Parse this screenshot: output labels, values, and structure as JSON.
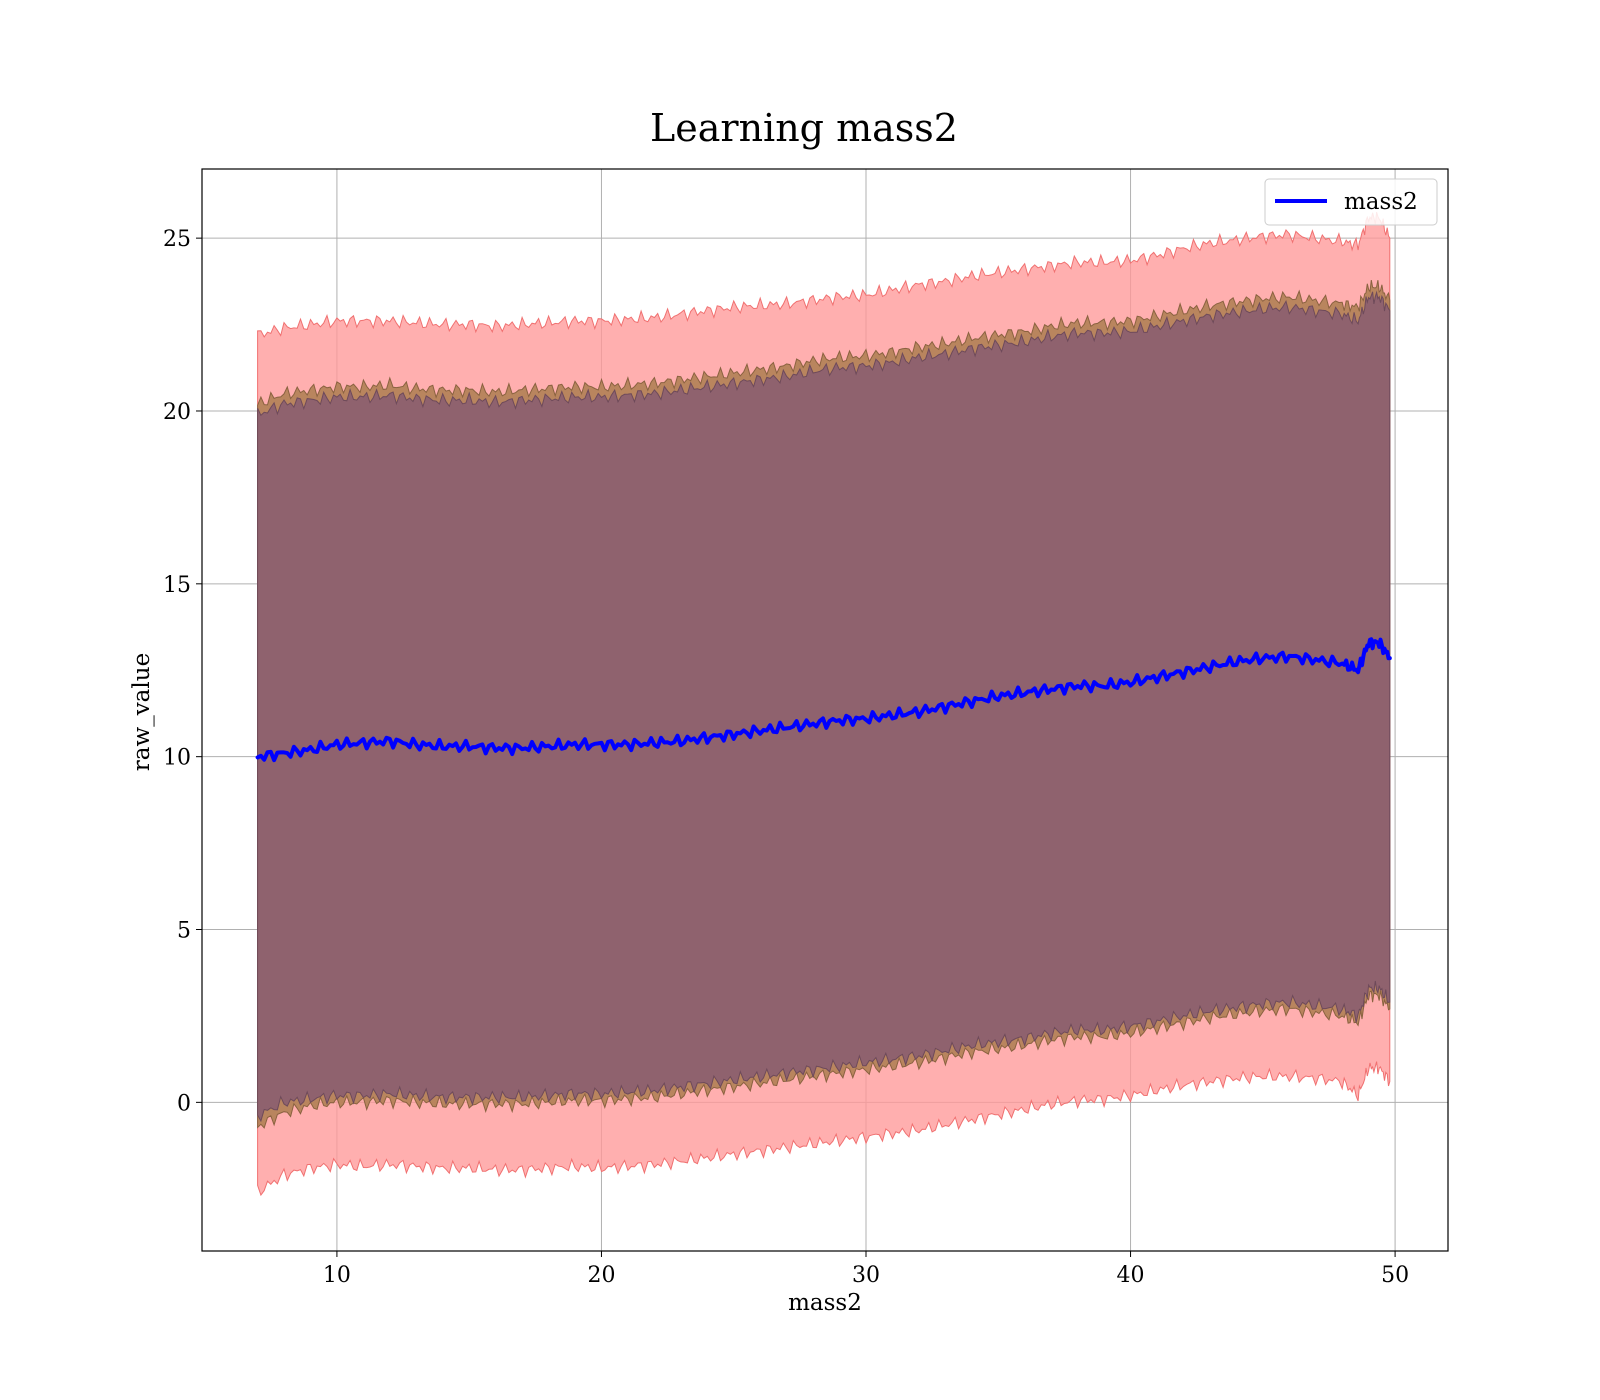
{
  "chart_data": {
    "type": "area",
    "title": "Learning mass2",
    "xlabel": "mass2",
    "ylabel": "raw_value",
    "xlim": [
      4.9,
      52.0
    ],
    "ylim": [
      -4.3,
      27.0
    ],
    "x_ticks": [
      10,
      20,
      30,
      40,
      50
    ],
    "y_ticks": [
      0,
      5,
      10,
      15,
      20,
      25
    ],
    "grid": true,
    "legend_position": "top-right",
    "colors": {
      "line": "#0000ff",
      "outer_band": "#ff9999",
      "middle_band": "#b5835a",
      "inner_band": "#8b5f70"
    },
    "series": [
      {
        "name": "mass2",
        "x": [
          7.0,
          8.0,
          9.0,
          10.0,
          11.0,
          12.0,
          13.0,
          14.0,
          15.0,
          16.0,
          17.0,
          18.0,
          19.0,
          20.0,
          21.0,
          22.0,
          23.0,
          24.0,
          25.0,
          26.0,
          27.0,
          28.0,
          29.0,
          30.0,
          31.0,
          32.0,
          33.0,
          34.0,
          35.0,
          36.0,
          37.0,
          38.0,
          39.0,
          40.0,
          41.0,
          42.0,
          43.0,
          44.0,
          45.0,
          46.0,
          47.0,
          48.0,
          48.6,
          49.0,
          49.4,
          49.8
        ],
        "y": [
          10.0,
          10.1,
          10.2,
          10.35,
          10.4,
          10.45,
          10.35,
          10.3,
          10.3,
          10.25,
          10.25,
          10.3,
          10.35,
          10.35,
          10.35,
          10.4,
          10.45,
          10.55,
          10.65,
          10.75,
          10.85,
          10.95,
          11.05,
          11.1,
          11.2,
          11.3,
          11.45,
          11.6,
          11.75,
          11.85,
          11.95,
          12.05,
          12.05,
          12.15,
          12.3,
          12.45,
          12.6,
          12.75,
          12.85,
          12.9,
          12.8,
          12.7,
          12.5,
          13.3,
          13.3,
          12.85
        ]
      }
    ],
    "bands": [
      {
        "lower": [
          -2.6,
          -2.1,
          -1.9,
          -1.8,
          -1.85,
          -1.8,
          -1.85,
          -1.9,
          -1.9,
          -1.95,
          -1.95,
          -1.9,
          -1.85,
          -1.9,
          -1.85,
          -1.8,
          -1.7,
          -1.6,
          -1.5,
          -1.4,
          -1.3,
          -1.2,
          -1.1,
          -1.0,
          -0.9,
          -0.8,
          -0.65,
          -0.5,
          -0.35,
          -0.2,
          -0.05,
          0.05,
          0.1,
          0.2,
          0.35,
          0.5,
          0.6,
          0.7,
          0.75,
          0.75,
          0.7,
          0.6,
          0.2,
          1.0,
          1.0,
          0.6
        ],
        "upper": [
          22.2,
          22.4,
          22.5,
          22.6,
          22.6,
          22.6,
          22.55,
          22.5,
          22.5,
          22.45,
          22.5,
          22.55,
          22.6,
          22.6,
          22.65,
          22.7,
          22.8,
          22.9,
          23.0,
          23.05,
          23.1,
          23.2,
          23.3,
          23.35,
          23.5,
          23.65,
          23.75,
          23.9,
          24.0,
          24.1,
          24.2,
          24.3,
          24.3,
          24.35,
          24.5,
          24.7,
          24.85,
          24.95,
          25.05,
          25.1,
          25.0,
          24.9,
          24.8,
          25.6,
          25.6,
          25.0
        ]
      },
      {
        "lower": [
          -0.7,
          -0.3,
          -0.1,
          0.0,
          0.0,
          0.05,
          0.0,
          -0.05,
          -0.05,
          -0.05,
          -0.05,
          0.0,
          0.05,
          0.05,
          0.1,
          0.15,
          0.25,
          0.35,
          0.45,
          0.55,
          0.65,
          0.75,
          0.85,
          0.95,
          1.05,
          1.15,
          1.3,
          1.45,
          1.55,
          1.65,
          1.8,
          1.9,
          1.9,
          2.0,
          2.15,
          2.3,
          2.45,
          2.55,
          2.65,
          2.7,
          2.6,
          2.5,
          2.3,
          3.1,
          3.1,
          2.7
        ],
        "upper": [
          20.2,
          20.5,
          20.6,
          20.7,
          20.7,
          20.75,
          20.65,
          20.6,
          20.6,
          20.55,
          20.6,
          20.65,
          20.7,
          20.7,
          20.75,
          20.8,
          20.9,
          21.0,
          21.1,
          21.2,
          21.3,
          21.45,
          21.55,
          21.6,
          21.7,
          21.85,
          21.95,
          22.1,
          22.2,
          22.3,
          22.45,
          22.55,
          22.55,
          22.6,
          22.75,
          22.9,
          23.05,
          23.15,
          23.25,
          23.3,
          23.2,
          23.1,
          23.0,
          23.6,
          23.6,
          23.2
        ]
      },
      {
        "lower": [
          -0.4,
          0.0,
          0.1,
          0.2,
          0.2,
          0.25,
          0.2,
          0.15,
          0.15,
          0.15,
          0.15,
          0.2,
          0.25,
          0.25,
          0.3,
          0.35,
          0.45,
          0.55,
          0.65,
          0.75,
          0.85,
          0.95,
          1.05,
          1.15,
          1.25,
          1.35,
          1.5,
          1.65,
          1.75,
          1.85,
          2.0,
          2.1,
          2.1,
          2.2,
          2.35,
          2.5,
          2.65,
          2.75,
          2.85,
          2.9,
          2.8,
          2.7,
          2.5,
          3.3,
          3.3,
          2.9
        ],
        "upper": [
          19.9,
          20.2,
          20.3,
          20.4,
          20.4,
          20.45,
          20.35,
          20.3,
          20.3,
          20.25,
          20.3,
          20.35,
          20.4,
          20.4,
          20.45,
          20.5,
          20.6,
          20.7,
          20.8,
          20.9,
          21.0,
          21.15,
          21.25,
          21.3,
          21.4,
          21.55,
          21.65,
          21.8,
          21.9,
          22.0,
          22.15,
          22.25,
          22.25,
          22.3,
          22.45,
          22.6,
          22.75,
          22.85,
          22.95,
          23.0,
          22.9,
          22.8,
          22.6,
          23.3,
          23.3,
          22.9
        ]
      }
    ]
  }
}
